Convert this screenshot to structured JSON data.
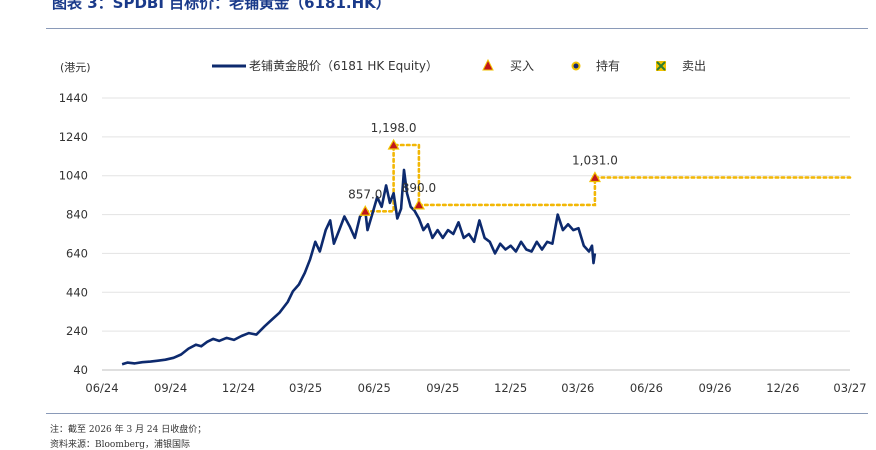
{
  "figure": {
    "title": "图表 3：SPDBI 目标价：老铺黄金（6181.HK）",
    "footnote": "注：截至 2026 年 3 月 24 日收盘价；",
    "source": "资料来源：Bloomberg，浦银国际"
  },
  "colors": {
    "price_line": "#0d2a6e",
    "target_line": "#f2b705",
    "buy": "#c0161a",
    "hold": "#1a2a6c",
    "sell": "#2e7d32",
    "marker_fill": "#f2c200",
    "grid": "#e3e3e3",
    "text": "#333333"
  },
  "chart_data": {
    "type": "line",
    "ylabel": "(港元)",
    "ylim": [
      40,
      1440
    ],
    "yticks": [
      40,
      240,
      440,
      640,
      840,
      1040,
      1240,
      1440
    ],
    "xlim": [
      "2024-06",
      "2027-03"
    ],
    "xticks": [
      "06/24",
      "09/24",
      "12/24",
      "03/25",
      "06/25",
      "09/25",
      "12/25",
      "03/26",
      "06/26",
      "09/26",
      "12/26",
      "03/27"
    ],
    "grid": true,
    "legend_position": "top",
    "legend": [
      {
        "label": "老铺黄金股价（6181 HK Equity）",
        "marker": "line"
      },
      {
        "label": "买入",
        "marker": "triangle"
      },
      {
        "label": "持有",
        "marker": "circle"
      },
      {
        "label": "卖出",
        "marker": "cross"
      }
    ],
    "series": [
      {
        "name": "老铺黄金股价（6181 HK Equity）",
        "points": [
          [
            "2024-06-28",
            70
          ],
          [
            "2024-07-05",
            78
          ],
          [
            "2024-07-15",
            74
          ],
          [
            "2024-07-25",
            80
          ],
          [
            "2024-08-05",
            83
          ],
          [
            "2024-08-15",
            88
          ],
          [
            "2024-08-25",
            93
          ],
          [
            "2024-09-05",
            103
          ],
          [
            "2024-09-15",
            120
          ],
          [
            "2024-09-25",
            150
          ],
          [
            "2024-10-05",
            170
          ],
          [
            "2024-10-12",
            162
          ],
          [
            "2024-10-20",
            185
          ],
          [
            "2024-10-28",
            200
          ],
          [
            "2024-11-05",
            190
          ],
          [
            "2024-11-15",
            205
          ],
          [
            "2024-11-25",
            195
          ],
          [
            "2024-12-05",
            215
          ],
          [
            "2024-12-15",
            230
          ],
          [
            "2024-12-25",
            222
          ],
          [
            "2025-01-05",
            265
          ],
          [
            "2025-01-15",
            300
          ],
          [
            "2025-01-25",
            335
          ],
          [
            "2025-02-05",
            390
          ],
          [
            "2025-02-12",
            445
          ],
          [
            "2025-02-20",
            480
          ],
          [
            "2025-02-28",
            540
          ],
          [
            "2025-03-07",
            610
          ],
          [
            "2025-03-14",
            700
          ],
          [
            "2025-03-20",
            650
          ],
          [
            "2025-03-28",
            760
          ],
          [
            "2025-04-03",
            810
          ],
          [
            "2025-04-08",
            690
          ],
          [
            "2025-04-15",
            760
          ],
          [
            "2025-04-22",
            830
          ],
          [
            "2025-04-29",
            780
          ],
          [
            "2025-05-06",
            720
          ],
          [
            "2025-05-13",
            830
          ],
          [
            "2025-05-20",
            860
          ],
          [
            "2025-05-23",
            760
          ],
          [
            "2025-05-30",
            850
          ],
          [
            "2025-06-05",
            930
          ],
          [
            "2025-06-11",
            880
          ],
          [
            "2025-06-17",
            990
          ],
          [
            "2025-06-22",
            900
          ],
          [
            "2025-06-27",
            950
          ],
          [
            "2025-07-02",
            820
          ],
          [
            "2025-07-07",
            870
          ],
          [
            "2025-07-11",
            1070
          ],
          [
            "2025-07-15",
            950
          ],
          [
            "2025-07-20",
            880
          ],
          [
            "2025-07-25",
            860
          ],
          [
            "2025-07-31",
            820
          ],
          [
            "2025-08-06",
            760
          ],
          [
            "2025-08-12",
            790
          ],
          [
            "2025-08-18",
            720
          ],
          [
            "2025-08-25",
            760
          ],
          [
            "2025-09-01",
            720
          ],
          [
            "2025-09-08",
            760
          ],
          [
            "2025-09-15",
            740
          ],
          [
            "2025-09-22",
            800
          ],
          [
            "2025-09-29",
            720
          ],
          [
            "2025-10-06",
            740
          ],
          [
            "2025-10-13",
            700
          ],
          [
            "2025-10-20",
            810
          ],
          [
            "2025-10-27",
            720
          ],
          [
            "2025-11-03",
            700
          ],
          [
            "2025-11-10",
            640
          ],
          [
            "2025-11-17",
            690
          ],
          [
            "2025-11-24",
            660
          ],
          [
            "2025-12-01",
            680
          ],
          [
            "2025-12-08",
            650
          ],
          [
            "2025-12-15",
            700
          ],
          [
            "2025-12-22",
            660
          ],
          [
            "2025-12-29",
            650
          ],
          [
            "2026-01-05",
            700
          ],
          [
            "2026-01-12",
            660
          ],
          [
            "2026-01-19",
            700
          ],
          [
            "2026-01-26",
            690
          ],
          [
            "2026-02-02",
            840
          ],
          [
            "2026-02-09",
            760
          ],
          [
            "2026-02-16",
            790
          ],
          [
            "2026-02-23",
            760
          ],
          [
            "2026-03-02",
            770
          ],
          [
            "2026-03-09",
            680
          ],
          [
            "2026-03-16",
            650
          ],
          [
            "2026-03-20",
            680
          ],
          [
            "2026-03-22",
            590
          ],
          [
            "2026-03-24",
            640
          ]
        ]
      }
    ],
    "target_price": {
      "name": "SPDBI 目标价",
      "steps": [
        [
          "2025-05-20",
          857.0
        ],
        [
          "2025-06-27",
          857.0
        ],
        [
          "2025-06-27",
          1198.0
        ],
        [
          "2025-07-31",
          1198.0
        ],
        [
          "2025-07-31",
          890.0
        ],
        [
          "2026-03-24",
          890.0
        ],
        [
          "2026-03-24",
          1031.0
        ],
        [
          "2027-03-01",
          1031.0
        ]
      ]
    },
    "ratings": [
      {
        "date": "2025-05-20",
        "value": 857.0,
        "type": "买入",
        "label": "857.0"
      },
      {
        "date": "2025-06-27",
        "value": 1198.0,
        "type": "买入",
        "label": "1,198.0"
      },
      {
        "date": "2025-07-31",
        "value": 890.0,
        "type": "买入",
        "label": "890.0"
      },
      {
        "date": "2026-03-24",
        "value": 1031.0,
        "type": "买入",
        "label": "1,031.0"
      }
    ]
  }
}
